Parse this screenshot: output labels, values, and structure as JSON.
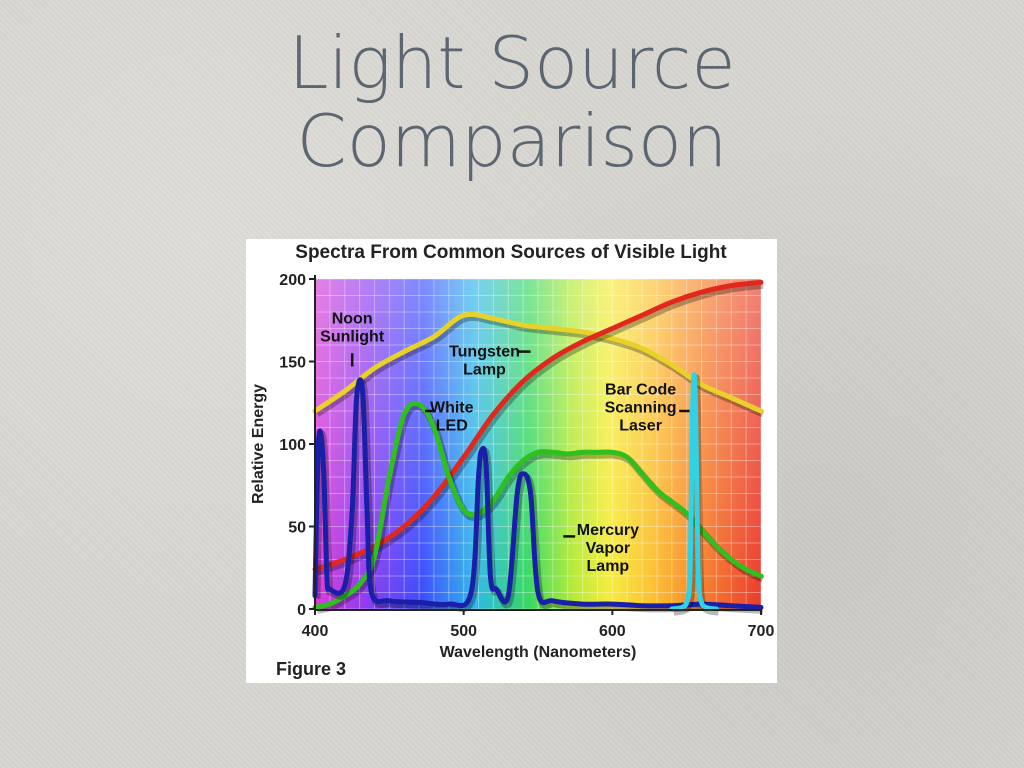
{
  "slide": {
    "title_line1": "Light Source",
    "title_line2": "Comparison"
  },
  "chart_data": {
    "type": "line",
    "title": "Spectra From Common Sources of Visible Light",
    "xlabel": "Wavelength (Nanometers)",
    "ylabel": "Relative Energy",
    "xlim": [
      400,
      700
    ],
    "ylim": [
      0,
      200
    ],
    "xticks": [
      400,
      500,
      600,
      700
    ],
    "yticks": [
      0,
      50,
      100,
      150,
      200
    ],
    "caption": "Figure 3",
    "background": "visible spectrum color gradient",
    "series": [
      {
        "name": "Noon Sunlight",
        "label_lines": [
          "Noon",
          "Sunlight"
        ],
        "color": "#e8d22a",
        "x": [
          400,
          420,
          440,
          460,
          480,
          500,
          520,
          540,
          560,
          580,
          600,
          620,
          640,
          660,
          680,
          700
        ],
        "y": [
          120,
          132,
          146,
          156,
          165,
          178,
          176,
          172,
          170,
          168,
          164,
          158,
          148,
          136,
          128,
          120
        ]
      },
      {
        "name": "Tungsten Lamp",
        "label_lines": [
          "Tungsten",
          "Lamp"
        ],
        "color": "#e0281c",
        "x": [
          400,
          420,
          440,
          460,
          480,
          500,
          520,
          540,
          560,
          580,
          600,
          620,
          640,
          660,
          680,
          700
        ],
        "y": [
          24,
          30,
          38,
          50,
          68,
          92,
          118,
          138,
          152,
          162,
          170,
          178,
          186,
          192,
          196,
          198
        ]
      },
      {
        "name": "White LED",
        "label_lines": [
          "White",
          "LED"
        ],
        "color": "#2fbf1e",
        "x": [
          400,
          410,
          420,
          430,
          440,
          450,
          460,
          470,
          480,
          490,
          500,
          510,
          520,
          530,
          540,
          550,
          560,
          570,
          580,
          590,
          600,
          610,
          620,
          630,
          640,
          650,
          660,
          670,
          680,
          690,
          700
        ],
        "y": [
          1,
          3,
          8,
          15,
          32,
          80,
          118,
          124,
          110,
          80,
          60,
          58,
          66,
          80,
          90,
          95,
          95,
          94,
          95,
          95,
          95,
          92,
          82,
          72,
          65,
          58,
          48,
          38,
          30,
          24,
          20
        ]
      },
      {
        "name": "Mercury Vapor Lamp",
        "label_lines": [
          "Mercury",
          "Vapor",
          "Lamp"
        ],
        "color": "#1a1fa8",
        "x": [
          400,
          402,
          404,
          406,
          408,
          410,
          420,
          425,
          428,
          432,
          435,
          438,
          450,
          470,
          490,
          505,
          510,
          512,
          515,
          518,
          522,
          530,
          536,
          540,
          545,
          550,
          560,
          580,
          600,
          620,
          640,
          660,
          680,
          700
        ],
        "y": [
          8,
          95,
          106,
          80,
          20,
          12,
          14,
          60,
          128,
          132,
          60,
          10,
          5,
          4,
          3,
          10,
          80,
          96,
          88,
          20,
          12,
          8,
          70,
          82,
          70,
          10,
          5,
          3,
          3,
          2,
          2,
          3,
          2,
          1
        ]
      },
      {
        "name": "Bar Code Scanning Laser",
        "label_lines": [
          "Bar Code",
          "Scanning",
          "Laser"
        ],
        "color": "#2fd2e6",
        "x": [
          640,
          645,
          648,
          650,
          652,
          653,
          654,
          655,
          656,
          657,
          658,
          660,
          662,
          665,
          670
        ],
        "y": [
          0,
          0.5,
          1.5,
          4,
          15,
          60,
          120,
          142,
          120,
          60,
          15,
          4,
          1.5,
          0.5,
          0
        ]
      }
    ]
  }
}
